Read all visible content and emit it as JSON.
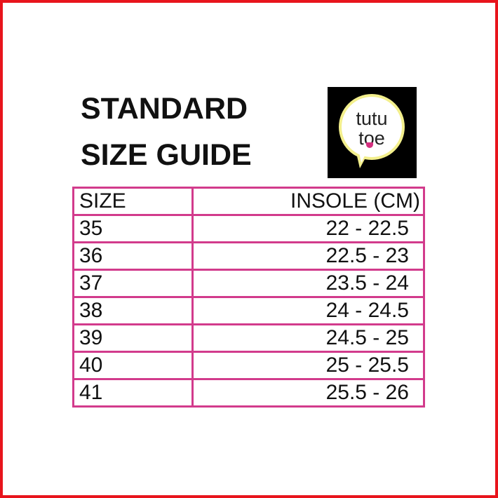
{
  "title_line1": "STANDARD",
  "title_line2": "SIZE GUIDE",
  "logo": {
    "line1": "tutu",
    "line2": "toe"
  },
  "table": {
    "headers": [
      "SIZE",
      "INSOLE (CM)"
    ],
    "rows": [
      [
        "35",
        "22 - 22.5"
      ],
      [
        "36",
        "22.5 - 23"
      ],
      [
        "37",
        "23.5 - 24"
      ],
      [
        "38",
        "24 - 24.5"
      ],
      [
        "39",
        "24.5 - 25"
      ],
      [
        "40",
        "25 - 25.5"
      ],
      [
        "41",
        "25.5 - 26"
      ]
    ]
  },
  "colors": {
    "frame": "#e8141c",
    "table_border": "#d23b8c"
  }
}
